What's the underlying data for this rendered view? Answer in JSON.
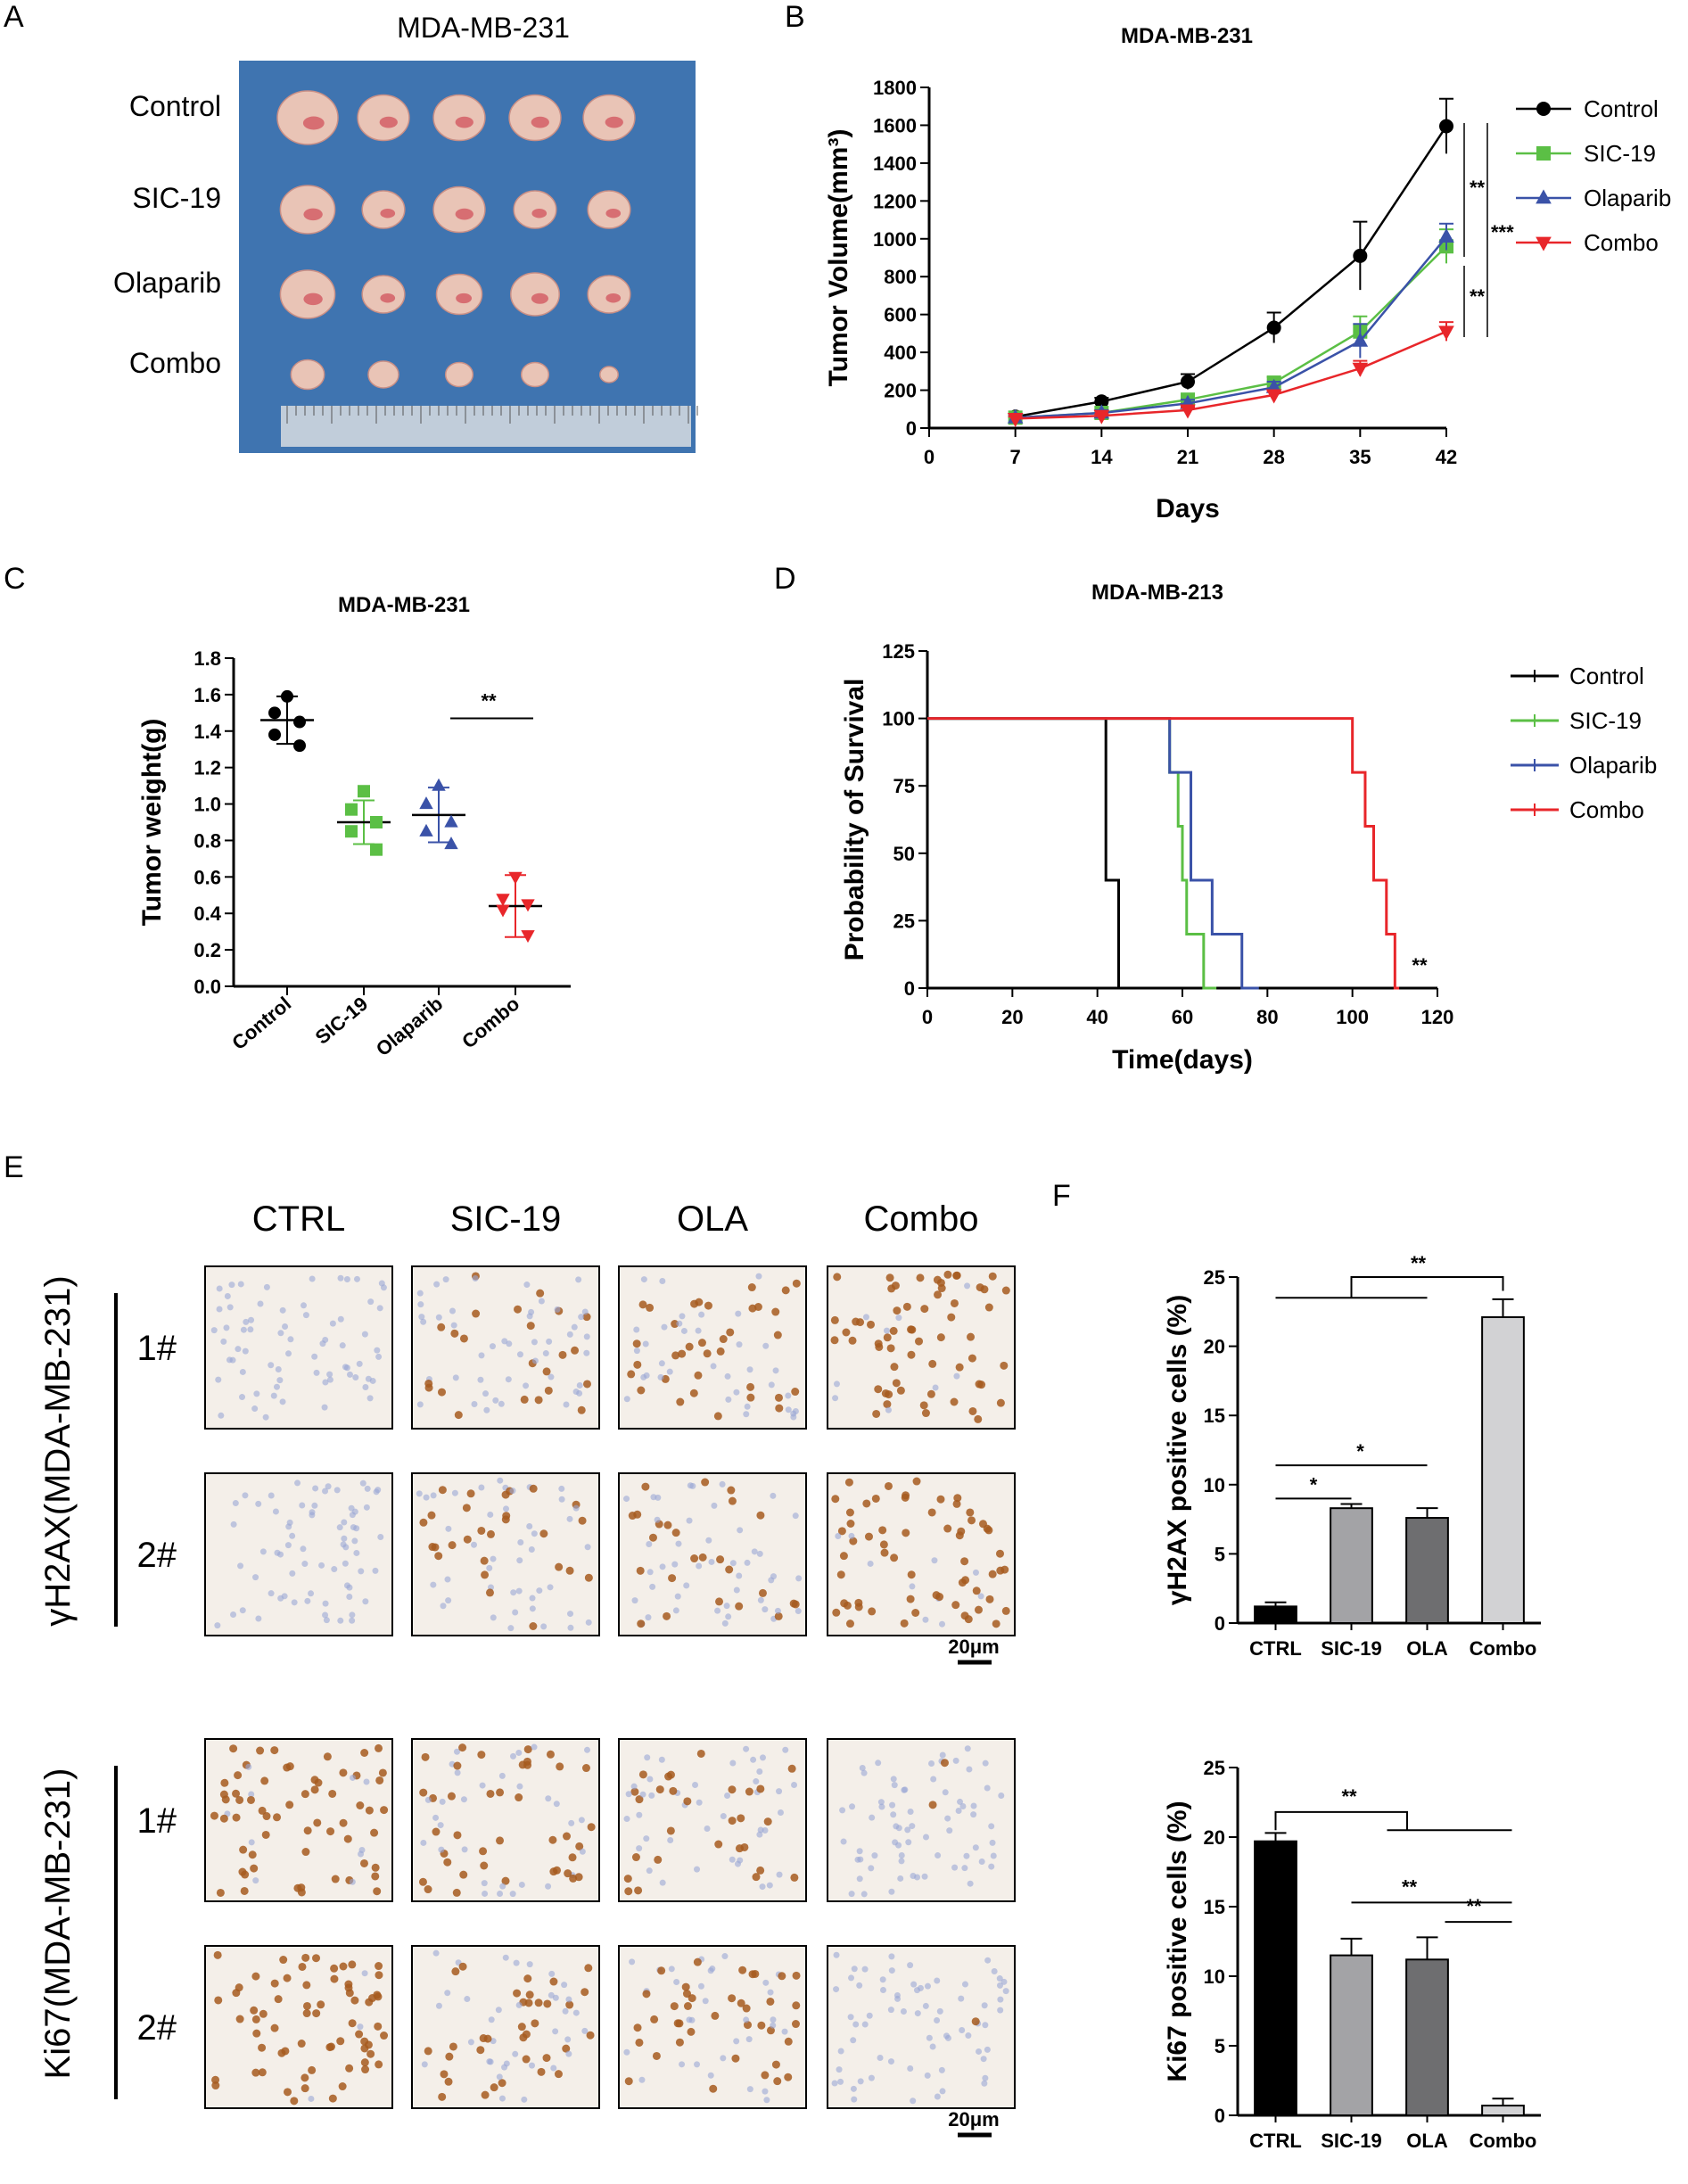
{
  "panels": {
    "A": {
      "letter": "A",
      "title": "MDA-MB-231",
      "rows": [
        "Control",
        "SIC-19",
        "Olaparib",
        "Combo"
      ],
      "tumor_sizes": [
        [
          1.0,
          0.85,
          0.85,
          0.85,
          0.85
        ],
        [
          0.9,
          0.7,
          0.85,
          0.7,
          0.7
        ],
        [
          0.9,
          0.7,
          0.75,
          0.8,
          0.7
        ],
        [
          0.55,
          0.5,
          0.45,
          0.45,
          0.3
        ]
      ],
      "colors": {
        "background": "#3f74b0",
        "tumor": "#e9c4b6",
        "ruler": "#d8dde2"
      }
    },
    "B": {
      "letter": "B",
      "chart_data": {
        "type": "line",
        "title": "MDA-MB-231",
        "xlabel": "Days",
        "ylabel": "Tumor Volume(mm³)",
        "x": [
          7,
          14,
          21,
          28,
          35,
          42
        ],
        "xticks": [
          0,
          7,
          14,
          21,
          28,
          35,
          42
        ],
        "yticks": [
          0,
          200,
          400,
          600,
          800,
          1000,
          1200,
          1400,
          1600,
          1800
        ],
        "xlim": [
          0,
          42
        ],
        "ylim": [
          0,
          1800
        ],
        "series": [
          {
            "name": "Control",
            "color": "#000000",
            "marker": "circle",
            "values": [
              60,
              140,
              245,
              530,
              910,
              1595
            ],
            "errors": [
              15,
              20,
              40,
              80,
              180,
              145
            ]
          },
          {
            "name": "SIC-19",
            "color": "#5bbf45",
            "marker": "square",
            "values": [
              55,
              80,
              150,
              240,
              510,
              960
            ],
            "errors": [
              10,
              15,
              25,
              30,
              80,
              90
            ]
          },
          {
            "name": "Olaparib",
            "color": "#3a52a8",
            "marker": "triangle-up",
            "values": [
              55,
              80,
              130,
              215,
              460,
              1010
            ],
            "errors": [
              10,
              15,
              20,
              30,
              90,
              70
            ]
          },
          {
            "name": "Combo",
            "color": "#e8262a",
            "marker": "triangle-down",
            "values": [
              50,
              65,
              95,
              175,
              315,
              510
            ],
            "errors": [
              10,
              10,
              15,
              20,
              40,
              50
            ]
          }
        ],
        "annotations": [
          "**",
          "***",
          "**"
        ]
      }
    },
    "C": {
      "letter": "C",
      "chart_data": {
        "type": "scatter",
        "title": "MDA-MB-231",
        "xlabel": "",
        "ylabel": "Tumor weight(g)",
        "categories": [
          "Control",
          "SIC-19",
          "Olaparib",
          "Combo"
        ],
        "yticks": [
          0.0,
          0.2,
          0.4,
          0.6,
          0.8,
          1.0,
          1.2,
          1.4,
          1.6,
          1.8
        ],
        "ylim": [
          0,
          1.8
        ],
        "groups": [
          {
            "name": "Control",
            "color": "#000000",
            "marker": "circle",
            "points": [
              1.59,
              1.5,
              1.45,
              1.38,
              1.32
            ],
            "mean": 1.46,
            "sd": 0.13
          },
          {
            "name": "SIC-19",
            "color": "#5bbf45",
            "marker": "square",
            "points": [
              1.07,
              0.97,
              0.9,
              0.85,
              0.75
            ],
            "mean": 0.9,
            "sd": 0.12
          },
          {
            "name": "Olaparib",
            "color": "#3a52a8",
            "marker": "triangle-up",
            "points": [
              1.1,
              1.0,
              0.9,
              0.85,
              0.78
            ],
            "mean": 0.94,
            "sd": 0.15
          },
          {
            "name": "Combo",
            "color": "#e8262a",
            "marker": "triangle-down",
            "points": [
              0.6,
              0.48,
              0.45,
              0.42,
              0.28
            ],
            "mean": 0.44,
            "sd": 0.17
          }
        ],
        "annotation": "**"
      }
    },
    "D": {
      "letter": "D",
      "chart_data": {
        "type": "line",
        "title": "MDA-MB-213",
        "xlabel": "Time(days)",
        "ylabel": "Probability of Survival",
        "xticks": [
          0,
          20,
          40,
          60,
          80,
          100,
          120
        ],
        "yticks": [
          0,
          25,
          50,
          75,
          100,
          125
        ],
        "xlim": [
          0,
          120
        ],
        "ylim": [
          0,
          125
        ],
        "series": [
          {
            "name": "Control",
            "color": "#000000",
            "steps": [
              [
                0,
                100
              ],
              [
                42,
                100
              ],
              [
                42,
                40
              ],
              [
                45,
                40
              ],
              [
                45,
                0
              ],
              [
                50,
                0
              ]
            ]
          },
          {
            "name": "SIC-19",
            "color": "#5bbf45",
            "steps": [
              [
                0,
                100
              ],
              [
                57,
                100
              ],
              [
                57,
                80
              ],
              [
                59,
                80
              ],
              [
                59,
                60
              ],
              [
                60,
                60
              ],
              [
                60,
                40
              ],
              [
                61,
                40
              ],
              [
                61,
                20
              ],
              [
                65,
                20
              ],
              [
                65,
                0
              ],
              [
                68,
                0
              ]
            ]
          },
          {
            "name": "Olaparib",
            "color": "#3a52a8",
            "steps": [
              [
                0,
                100
              ],
              [
                57,
                100
              ],
              [
                57,
                80
              ],
              [
                62,
                80
              ],
              [
                62,
                40
              ],
              [
                67,
                40
              ],
              [
                67,
                20
              ],
              [
                74,
                20
              ],
              [
                74,
                0
              ],
              [
                78,
                0
              ]
            ]
          },
          {
            "name": "Combo",
            "color": "#e8262a",
            "steps": [
              [
                0,
                100
              ],
              [
                100,
                100
              ],
              [
                100,
                80
              ],
              [
                103,
                80
              ],
              [
                103,
                60
              ],
              [
                105,
                60
              ],
              [
                105,
                40
              ],
              [
                108,
                40
              ],
              [
                108,
                20
              ],
              [
                110,
                20
              ],
              [
                110,
                0
              ],
              [
                111,
                0
              ]
            ]
          }
        ],
        "annotation": "**"
      }
    },
    "E": {
      "letter": "E",
      "columns": [
        "CTRL",
        "SIC-19",
        "OLA",
        "Combo"
      ],
      "rows": [
        "1#",
        "2#"
      ],
      "sections": [
        {
          "label": "γH2AX(MDA-MB-231)",
          "intensity": [
            0.02,
            0.35,
            0.4,
            0.85
          ]
        },
        {
          "label": "Ki67(MDA-MB-231)",
          "intensity": [
            0.9,
            0.5,
            0.55,
            0.05
          ]
        }
      ],
      "scale_bar": "20μm",
      "colors": {
        "nucleus_blue": "#9aa7d6",
        "nucleus_brown": "#a65a1e",
        "background": "#f4efe9"
      }
    },
    "F": {
      "letter": "F",
      "chart_data": [
        {
          "type": "bar",
          "title": "",
          "ylabel": "γH2AX positive cells (%)",
          "categories": [
            "CTRL",
            "SIC-19",
            "OLA",
            "Combo"
          ],
          "values": [
            1.2,
            8.3,
            7.6,
            22.1
          ],
          "errors": [
            0.3,
            0.3,
            0.7,
            1.3
          ],
          "colors": [
            "#000000",
            "#a3a3a6",
            "#6e6e70",
            "#d2d2d4"
          ],
          "yticks": [
            0,
            5,
            10,
            15,
            20,
            25
          ],
          "ylim": [
            0,
            25
          ],
          "annotations": [
            "**",
            "*",
            "*"
          ]
        },
        {
          "type": "bar",
          "title": "",
          "ylabel": "Ki67 positive cells (%)",
          "categories": [
            "CTRL",
            "SIC-19",
            "OLA",
            "Combo"
          ],
          "values": [
            19.7,
            11.5,
            11.2,
            0.7
          ],
          "errors": [
            0.6,
            1.2,
            1.6,
            0.5
          ],
          "colors": [
            "#000000",
            "#a3a3a6",
            "#6e6e70",
            "#d2d2d4"
          ],
          "yticks": [
            0,
            5,
            10,
            15,
            20,
            25
          ],
          "ylim": [
            0,
            25
          ],
          "annotations": [
            "**",
            "**",
            "**"
          ]
        }
      ]
    }
  }
}
